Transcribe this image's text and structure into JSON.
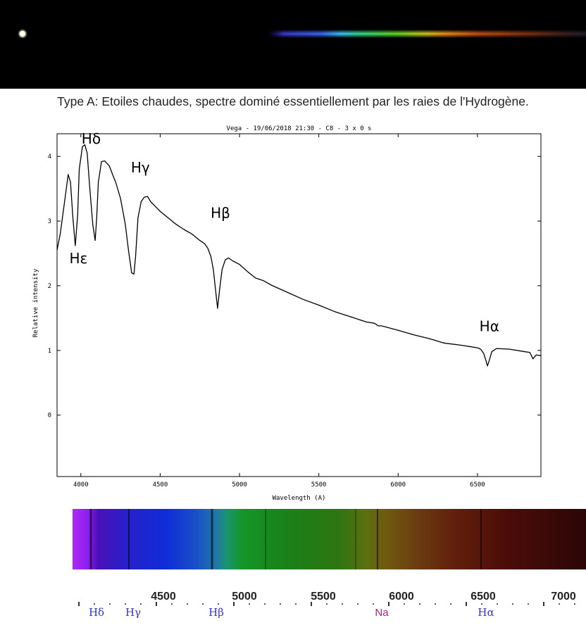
{
  "caption": "Type A: Etoiles chaudes, spectre dominé essentiellement par les raies de l'Hydrogène.",
  "chart_data": {
    "type": "line",
    "title": "Vega - 19/06/2018 21:30 - C8 - 3 x 0 s",
    "xlabel": "Wavelength (A)",
    "ylabel": "Relative intensity",
    "xlim": [
      3850,
      6900
    ],
    "ylim": [
      -0.95,
      4.35
    ],
    "xticks": [
      4000,
      4500,
      5000,
      5500,
      6000,
      6500
    ],
    "yticks": [
      0,
      1,
      2,
      3,
      4
    ],
    "series": [
      {
        "x": [
          3850,
          3870,
          3900,
          3920,
          3935,
          3950,
          3965,
          3980,
          3990,
          4010,
          4025,
          4040,
          4055,
          4075,
          4090,
          4100,
          4110,
          4130,
          4150,
          4180,
          4200,
          4220,
          4250,
          4280,
          4300,
          4320,
          4335,
          4345,
          4360,
          4380,
          4400,
          4420,
          4440,
          4460,
          4500,
          4550,
          4600,
          4650,
          4700,
          4750,
          4780,
          4800,
          4820,
          4835,
          4850,
          4862,
          4875,
          4890,
          4910,
          4930,
          4960,
          5000,
          5050,
          5100,
          5150,
          5200,
          5300,
          5400,
          5500,
          5600,
          5700,
          5800,
          5850,
          5875,
          5893,
          5910,
          6000,
          6100,
          6200,
          6280,
          6300,
          6400,
          6450,
          6500,
          6520,
          6540,
          6555,
          6563,
          6575,
          6590,
          6620,
          6700,
          6800,
          6830,
          6850,
          6870,
          6900
        ],
        "y": [
          2.55,
          2.8,
          3.35,
          3.72,
          3.6,
          3.05,
          2.62,
          3.1,
          3.8,
          4.15,
          4.18,
          4.05,
          3.55,
          2.95,
          2.7,
          3.05,
          3.6,
          3.92,
          3.93,
          3.85,
          3.72,
          3.6,
          3.35,
          2.95,
          2.55,
          2.2,
          2.18,
          2.45,
          3.05,
          3.3,
          3.37,
          3.38,
          3.3,
          3.25,
          3.15,
          3.05,
          2.95,
          2.87,
          2.8,
          2.7,
          2.65,
          2.58,
          2.45,
          2.25,
          1.92,
          1.65,
          1.95,
          2.25,
          2.4,
          2.43,
          2.38,
          2.33,
          2.22,
          2.12,
          2.08,
          2.01,
          1.9,
          1.79,
          1.7,
          1.6,
          1.52,
          1.44,
          1.42,
          1.38,
          1.38,
          1.37,
          1.31,
          1.24,
          1.18,
          1.12,
          1.11,
          1.08,
          1.06,
          1.04,
          1.02,
          0.95,
          0.83,
          0.76,
          0.85,
          0.98,
          1.03,
          1.02,
          0.98,
          0.97,
          0.87,
          0.93,
          0.92
        ]
      }
    ],
    "annotations": [
      {
        "text": "Hδ",
        "x": 4065,
        "y": 4.2
      },
      {
        "text": "Hγ",
        "x": 4375,
        "y": 3.75
      },
      {
        "text": "Hε",
        "x": 3985,
        "y": 2.35
      },
      {
        "text": "Hβ",
        "x": 4880,
        "y": 3.05
      },
      {
        "text": "Hα",
        "x": 6575,
        "y": 1.3
      }
    ]
  },
  "reference_spectrum": {
    "ticks": [
      "4500",
      "5000",
      "5500",
      "6000",
      "6500",
      "7000"
    ],
    "lines": [
      {
        "label": "Hδ",
        "color": "#3333cc"
      },
      {
        "label": "Hγ",
        "color": "#3333cc"
      },
      {
        "label": "Hβ",
        "color": "#3333cc"
      },
      {
        "label": "Na",
        "color": "#aa2288"
      },
      {
        "label": "Hα",
        "color": "#3333cc"
      }
    ]
  }
}
